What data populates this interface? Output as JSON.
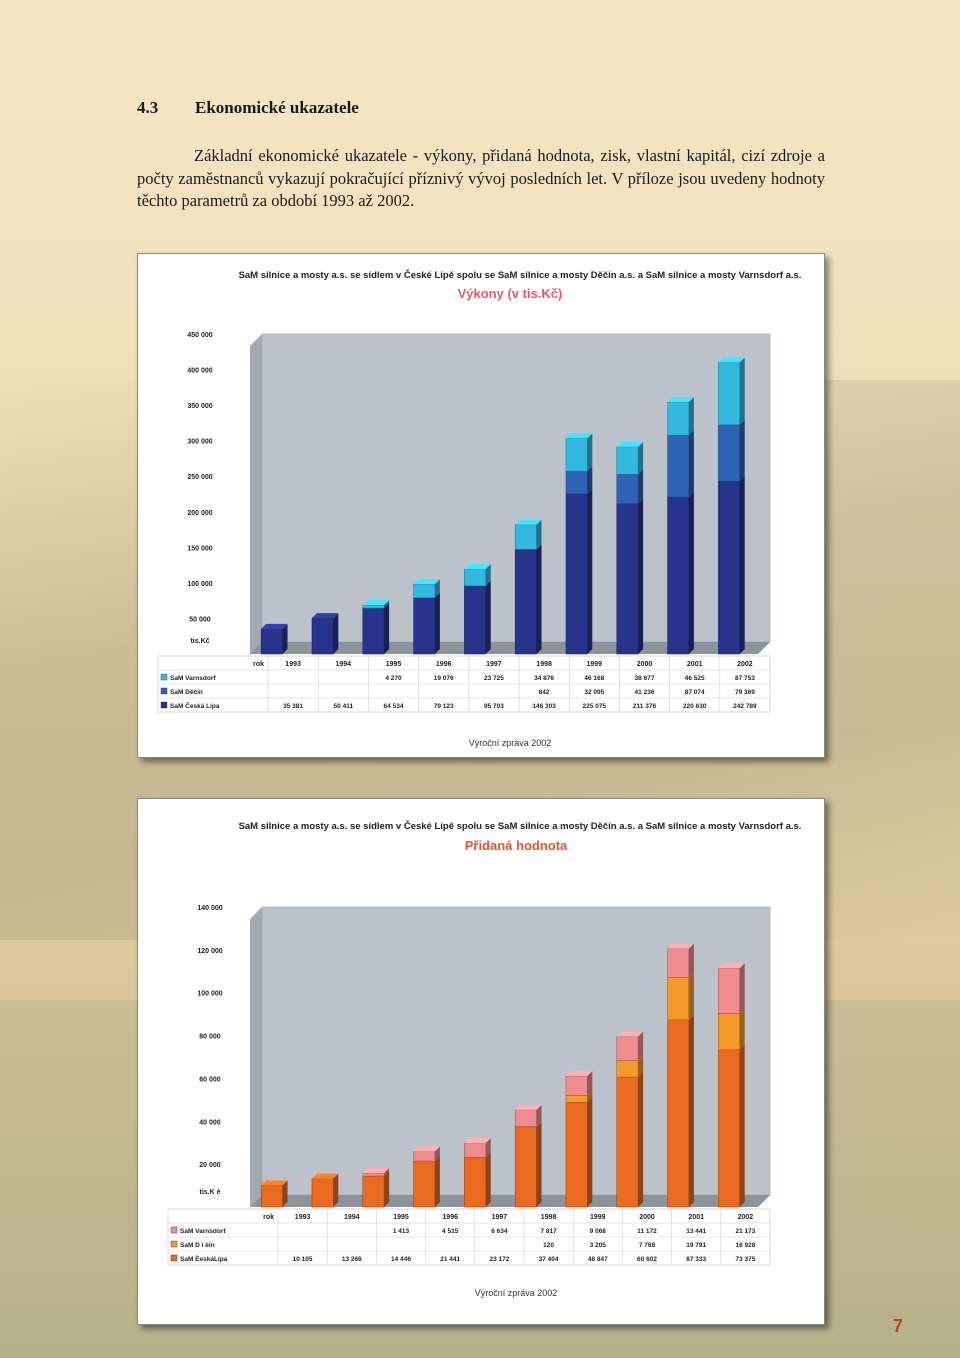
{
  "section": {
    "number": "4.3",
    "title": "Ekonomické ukazatele"
  },
  "paragraph": "Základní ekonomické ukazatele - výkony, přidaná hodnota, zisk, vlastní kapitál, cizí zdroje a počty zaměstnanců vykazují pokračující příznivý vývoj posledních let. V příloze jsou uvedeny hodnoty těchto parametrů za období 1993 až 2002.",
  "page_number": "7",
  "chart_data": [
    {
      "type": "bar",
      "stacked": true,
      "title": "SaM silnice a mosty a.s. se sídlem v České Lípě spolu se SaM silnice a mosty Děčín a.s. a SaM silnice a mosty Varnsdorf a.s.",
      "subtitle": "Výkony (v tis.Kč)",
      "ylabel": "tis.Kč",
      "xlabel": "rok",
      "footer": "Výroční zpráva 2002",
      "ylim": [
        0,
        450000
      ],
      "yticks": [
        "50 000",
        "100 000",
        "150 000",
        "200 000",
        "250 000",
        "300 000",
        "350 000",
        "400 000",
        "450 000"
      ],
      "categories": [
        "1993",
        "1994",
        "1995",
        "1996",
        "1997",
        "1998",
        "1999",
        "2000",
        "2001",
        "2002"
      ],
      "series": [
        {
          "name": "SaM Česká Lípa",
          "color": "#26348c",
          "values": [
            35381,
            50411,
            64534,
            79123,
            95703,
            146303,
            225075,
            211376,
            220630,
            242789
          ],
          "labels": [
            "35 381",
            "50 411",
            "64 534",
            "79 123",
            "95 703",
            "146 303",
            "225 075",
            "211 376",
            "220 630",
            "242 789"
          ]
        },
        {
          "name": "SaM Děčín",
          "color": "#2f63b8",
          "values": [
            0,
            0,
            0,
            0,
            0,
            842,
            32095,
            41236,
            87074,
            79369
          ],
          "labels": [
            "",
            "",
            "",
            "",
            "",
            "842",
            "32 095",
            "41 236",
            "87 074",
            "79 369"
          ]
        },
        {
          "name": "SaM Varnsdorf",
          "color": "#33b8e0",
          "values": [
            0,
            0,
            4270,
            19076,
            23725,
            34876,
            46168,
            38677,
            46525,
            87753
          ],
          "labels": [
            "",
            "",
            "4 270",
            "19 076",
            "23 725",
            "34 876",
            "46 168",
            "38 677",
            "46 525",
            "87 753"
          ]
        }
      ]
    },
    {
      "type": "bar",
      "stacked": true,
      "title": "SaM silnice a mosty a.s. se sídlem v České Lípě spolu se SaM silnice a mosty Děčín a.s. a SaM silnice a mosty Varnsdorf a.s.",
      "subtitle": "Přidaná hodnota",
      "ylabel": "tis.K è",
      "xlabel": "rok",
      "footer": "Výroční zpráva 2002",
      "ylim": [
        0,
        140000
      ],
      "yticks": [
        "20 000",
        "40 000",
        "60 000",
        "80 000",
        "100 000",
        "120 000",
        "140 000"
      ],
      "categories": [
        "1993",
        "1994",
        "1995",
        "1996",
        "1997",
        "1998",
        "1999",
        "2000",
        "2001",
        "2002"
      ],
      "series": [
        {
          "name": "SaM  ÈeskáLípa",
          "color": "#ea6a1f",
          "values": [
            10105,
            13266,
            14446,
            21441,
            23172,
            37404,
            48847,
            60602,
            87333,
            73375
          ],
          "labels": [
            "10 105",
            "13 266",
            "14 446",
            "21 441",
            "23 172",
            "37 404",
            "48 847",
            "60 602",
            "87 333",
            "73 375"
          ]
        },
        {
          "name": "SaM D ì èín",
          "color": "#f39a2a",
          "values": [
            0,
            0,
            0,
            0,
            0,
            120,
            3205,
            7768,
            19791,
            16928
          ],
          "labels": [
            "",
            "",
            "",
            "",
            "",
            "120",
            "3 205",
            "7 768",
            "19 791",
            "16 928"
          ]
        },
        {
          "name": "SaM Varnsdorf",
          "color": "#ef8c8f",
          "values": [
            0,
            0,
            1413,
            4515,
            6634,
            7817,
            9068,
            11172,
            13441,
            21173
          ],
          "labels": [
            "",
            "",
            "1 413",
            "4 515",
            "6 634",
            "7 817",
            "9 068",
            "11 172",
            "13 441",
            "21 173"
          ]
        }
      ]
    }
  ]
}
